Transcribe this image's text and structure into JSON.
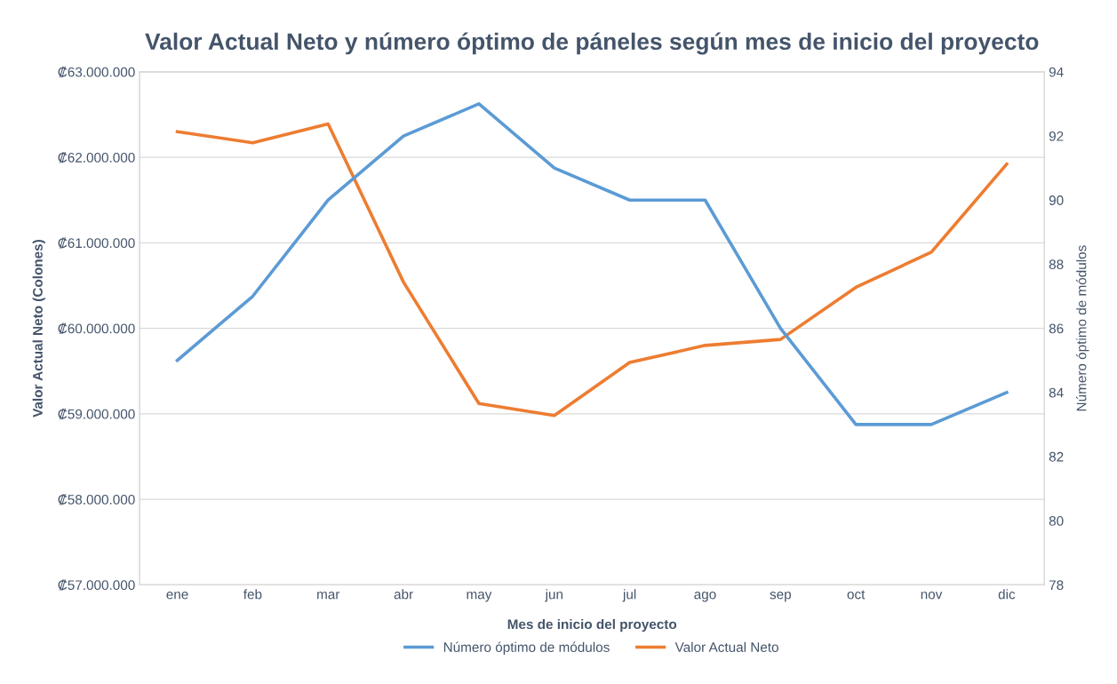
{
  "chart_data": {
    "type": "line",
    "title": "Valor Actual Neto y número óptimo de páneles según mes de inicio del proyecto",
    "xlabel": "Mes de inicio del proyecto",
    "ylabel": "Valor Actual Neto (Colones)",
    "y2label": "Número óptimo de módulos",
    "categories": [
      "ene",
      "feb",
      "mar",
      "abr",
      "may",
      "jun",
      "jul",
      "ago",
      "sep",
      "oct",
      "nov",
      "dic"
    ],
    "series": [
      {
        "name": "Número óptimo de módulos",
        "color": "#5b9bd5",
        "axis": "y2",
        "values": [
          85,
          87,
          90,
          92,
          93,
          91,
          90,
          90,
          86,
          83,
          83,
          84
        ]
      },
      {
        "name": "Valor Actual Neto",
        "color": "#ed7d31",
        "values": [
          62300000,
          62170000,
          62390000,
          60540000,
          59120000,
          58980000,
          59600000,
          59800000,
          59870000,
          60480000,
          60890000,
          61920000
        ]
      }
    ],
    "ylim": [
      57000000,
      63000000
    ],
    "yticks": [
      {
        "value": 57000000,
        "label": "₡57.000.000"
      },
      {
        "value": 58000000,
        "label": "₡58.000.000"
      },
      {
        "value": 59000000,
        "label": "₡59.000.000"
      },
      {
        "value": 60000000,
        "label": "₡60.000.000"
      },
      {
        "value": 61000000,
        "label": "₡61.000.000"
      },
      {
        "value": 62000000,
        "label": "₡62.000.000"
      },
      {
        "value": 63000000,
        "label": "₡63.000.000"
      }
    ],
    "y2lim": [
      78,
      94
    ],
    "y2ticks": [
      78,
      80,
      82,
      84,
      86,
      88,
      90,
      92,
      94
    ],
    "grid": "y",
    "legend": "bottom",
    "marker": "none",
    "line_style": "solid"
  }
}
